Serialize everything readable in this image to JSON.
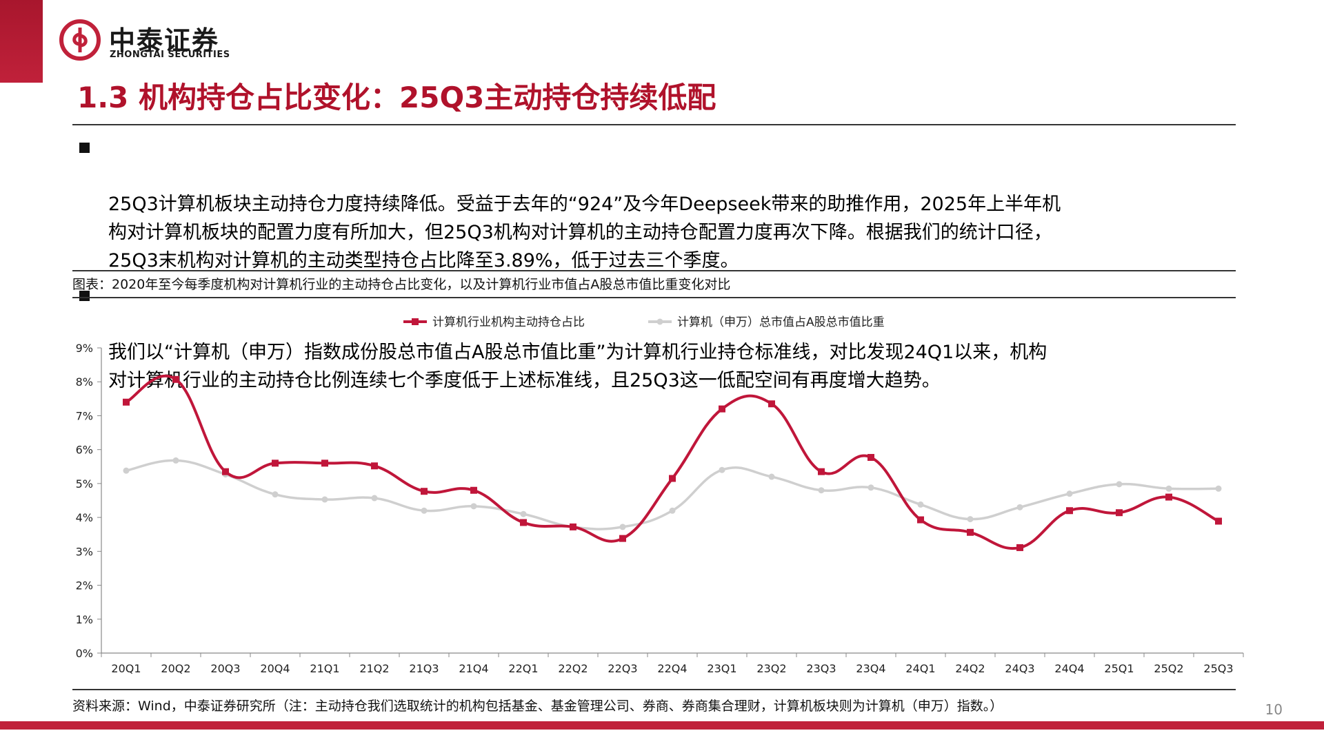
{
  "brand": {
    "name_cn": "中泰证券",
    "name_en": "ZHONGTAI SECURITIES",
    "color": "#c0213a"
  },
  "slide": {
    "title": "1.3 机构持仓占比变化：25Q3主动持仓持续低配",
    "page_number": "10"
  },
  "bullets": [
    "25Q3计算机板块主动持仓力度持续降低。受益于去年的“924”及今年Deepseek带来的助推作用，2025年上半年机\n构对计算机板块的配置力度有所加大，但25Q3机构对计算机的主动持仓配置力度再次下降。根据我们的统计口径，\n25Q3末机构对计算机的主动类型持仓占比降至3.89%，低于过去三个季度。",
    "我们以“计算机（申万）指数成份股总市值占A股总市值比重”为计算机行业持仓标准线，对比发现24Q1以来，机构\n对计算机行业的主动持仓比例连续七个季度低于上述标准线，且25Q3这一低配空间有再度增大趋势。"
  ],
  "figure_caption": "图表：2020年至今每季度机构对计算机行业的主动持仓占比变化，以及计算机行业市值占A股总市值比重变化对比",
  "source_note": "资料来源：Wind，中泰证券研究所（注：主动持仓我们选取统计的机构包括基金、基金管理公司、券商、券商集合理财，计算机板块则为计算机（申万）指数。）",
  "chart_data": {
    "type": "line",
    "categories": [
      "20Q1",
      "20Q2",
      "20Q3",
      "20Q4",
      "21Q1",
      "21Q2",
      "21Q3",
      "21Q4",
      "22Q1",
      "22Q2",
      "22Q3",
      "22Q4",
      "23Q1",
      "23Q2",
      "23Q3",
      "23Q4",
      "24Q1",
      "24Q2",
      "24Q3",
      "24Q4",
      "25Q1",
      "25Q2",
      "25Q3"
    ],
    "series": [
      {
        "name": "计算机行业机构主动持仓占比",
        "color": "#c0163a",
        "values": [
          7.4,
          8.07,
          5.35,
          5.6,
          5.6,
          5.52,
          4.77,
          4.8,
          3.85,
          3.72,
          3.38,
          5.15,
          7.2,
          7.35,
          5.35,
          5.77,
          3.93,
          3.56,
          3.11,
          4.2,
          4.14,
          4.6,
          3.89
        ]
      },
      {
        "name": "计算机（申万）总市值占A股总市值比重",
        "color": "#cfcfcf",
        "values": [
          5.38,
          5.68,
          5.27,
          4.68,
          4.53,
          4.57,
          4.2,
          4.33,
          4.1,
          3.72,
          3.72,
          4.2,
          5.4,
          5.2,
          4.8,
          4.88,
          4.38,
          3.95,
          4.3,
          4.7,
          4.98,
          4.85,
          4.85
        ]
      }
    ],
    "y_ticks": [
      "0%",
      "1%",
      "2%",
      "3%",
      "4%",
      "5%",
      "6%",
      "7%",
      "8%",
      "9%"
    ],
    "ylim": [
      0,
      9
    ],
    "legend_position": "top-center",
    "grid": false
  }
}
